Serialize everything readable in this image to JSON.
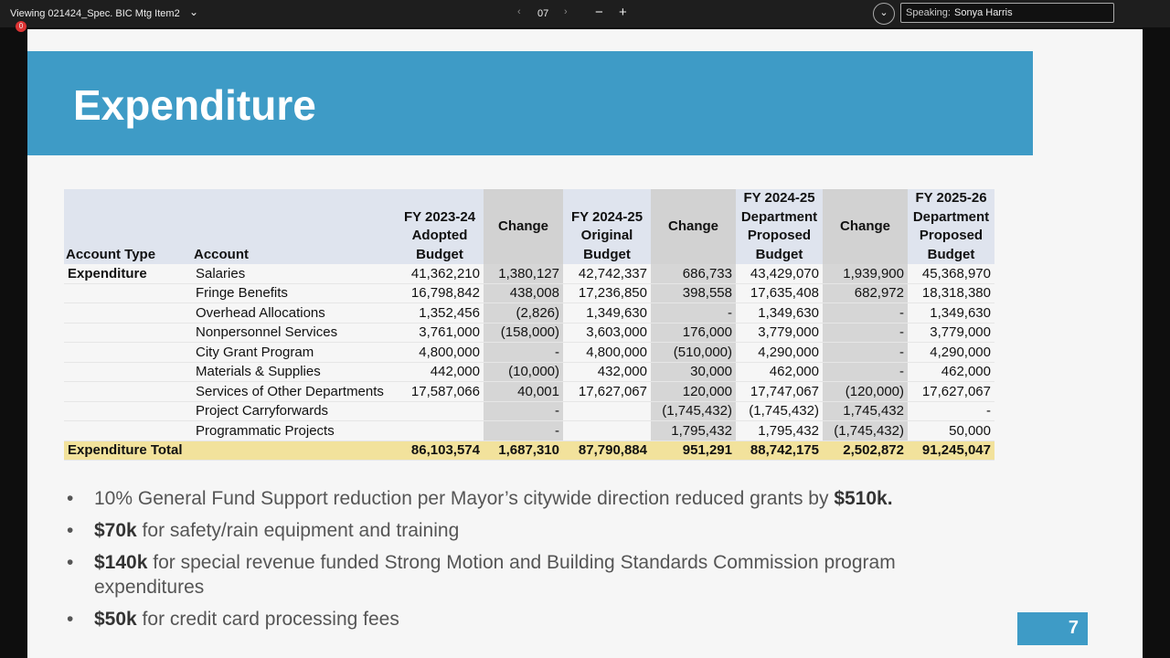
{
  "toolbar": {
    "title": "Viewing 021424_Spec. BIC Mtg Item2",
    "badge": "0",
    "page": "07",
    "speaking_label": "Speaking:",
    "speaker": "Sonya Harris"
  },
  "slide": {
    "title": "Expenditure",
    "table": {
      "headers": [
        [
          "Account Type"
        ],
        [
          "Account"
        ],
        [
          "FY 2023-24",
          "Adopted",
          "Budget"
        ],
        [
          "Change"
        ],
        [
          "FY 2024-25",
          "Original",
          "Budget"
        ],
        [
          "Change"
        ],
        [
          "FY 2024-25",
          "Department",
          "Proposed",
          "Budget"
        ],
        [
          "Change"
        ],
        [
          "FY 2025-26",
          "Department",
          "Proposed",
          "Budget"
        ]
      ],
      "group": "Expenditure",
      "rows": [
        {
          "account": "Salaries",
          "values": [
            "41,362,210",
            "1,380,127",
            "42,742,337",
            "686,733",
            "43,429,070",
            "1,939,900",
            "45,368,970"
          ]
        },
        {
          "account": "Fringe Benefits",
          "values": [
            "16,798,842",
            "438,008",
            "17,236,850",
            "398,558",
            "17,635,408",
            "682,972",
            "18,318,380"
          ]
        },
        {
          "account": "Overhead Allocations",
          "values": [
            "1,352,456",
            "(2,826)",
            "1,349,630",
            "-",
            "1,349,630",
            "-",
            "1,349,630"
          ]
        },
        {
          "account": "Nonpersonnel Services",
          "values": [
            "3,761,000",
            "(158,000)",
            "3,603,000",
            "176,000",
            "3,779,000",
            "-",
            "3,779,000"
          ]
        },
        {
          "account": "City Grant Program",
          "values": [
            "4,800,000",
            "-",
            "4,800,000",
            "(510,000)",
            "4,290,000",
            "-",
            "4,290,000"
          ]
        },
        {
          "account": "Materials & Supplies",
          "values": [
            "442,000",
            "(10,000)",
            "432,000",
            "30,000",
            "462,000",
            "-",
            "462,000"
          ]
        },
        {
          "account": "Services of Other Departments",
          "values": [
            "17,587,066",
            "40,001",
            "17,627,067",
            "120,000",
            "17,747,067",
            "(120,000)",
            "17,627,067"
          ]
        },
        {
          "account": "Project Carryforwards",
          "values": [
            null,
            "-",
            null,
            "(1,745,432)",
            "(1,745,432)",
            "1,745,432",
            "-"
          ]
        },
        {
          "account": "Programmatic Projects",
          "values": [
            null,
            "-",
            null,
            "1,795,432",
            "1,795,432",
            "(1,745,432)",
            "50,000"
          ]
        }
      ],
      "total": {
        "label": "Expenditure Total",
        "values": [
          "86,103,574",
          "1,687,310",
          "87,790,884",
          "951,291",
          "88,742,175",
          "2,502,872",
          "91,245,047"
        ]
      }
    },
    "bullets": [
      [
        {
          "text": "10% General Fund Support reduction per Mayor’s citywide direction reduced grants by ",
          "bold": false
        },
        {
          "text": "$510k.",
          "bold": true
        }
      ],
      [
        {
          "text": "$70k",
          "bold": true
        },
        {
          "text": " for safety/rain equipment and training",
          "bold": false
        }
      ],
      [
        {
          "text": "$140k",
          "bold": true
        },
        {
          "text": " for special revenue funded Strong Motion and Building Standards Commission program expenditures",
          "bold": false
        }
      ],
      [
        {
          "text": "$50k",
          "bold": true
        },
        {
          "text": " for credit card processing fees",
          "bold": false
        }
      ]
    ],
    "page_number": "7"
  }
}
